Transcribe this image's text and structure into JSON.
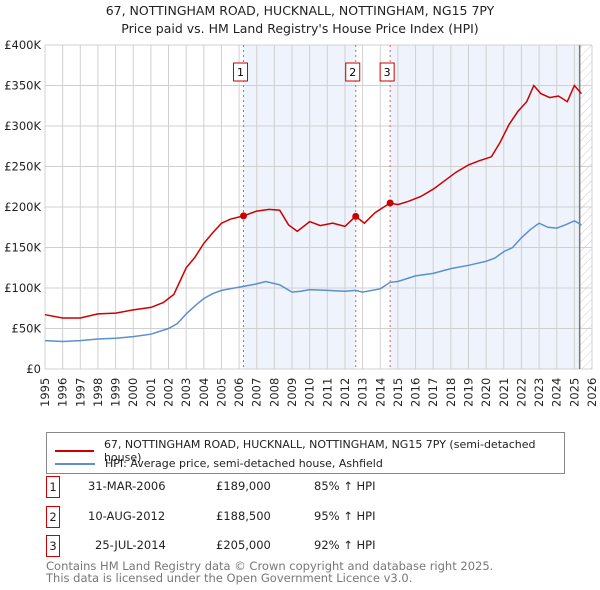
{
  "chart_data": {
    "type": "line",
    "title": "67, NOTTINGHAM ROAD, HUCKNALL, NOTTINGHAM, NG15 7PY",
    "subtitle": "Price paid vs. HM Land Registry's House Price Index (HPI)",
    "xlim": [
      1995,
      2026
    ],
    "ylim": [
      0,
      400000
    ],
    "x_ticks": [
      "1995",
      "1996",
      "1997",
      "1998",
      "1999",
      "2000",
      "2001",
      "2002",
      "2003",
      "2004",
      "2005",
      "2006",
      "2007",
      "2008",
      "2009",
      "2010",
      "2011",
      "2012",
      "2013",
      "2014",
      "2015",
      "2016",
      "2017",
      "2018",
      "2019",
      "2020",
      "2021",
      "2022",
      "2023",
      "2024",
      "2025",
      "2026"
    ],
    "y_ticks": [
      {
        "v": 0,
        "label": "£0"
      },
      {
        "v": 50000,
        "label": "£50K"
      },
      {
        "v": 100000,
        "label": "£100K"
      },
      {
        "v": 150000,
        "label": "£150K"
      },
      {
        "v": 200000,
        "label": "£200K"
      },
      {
        "v": 250000,
        "label": "£250K"
      },
      {
        "v": 300000,
        "label": "£300K"
      },
      {
        "v": 350000,
        "label": "£350K"
      },
      {
        "v": 400000,
        "label": "£400K"
      }
    ],
    "grid": true,
    "series": [
      {
        "name": "67, NOTTINGHAM ROAD, HUCKNALL, NOTTINGHAM, NG15 7PY (semi-detached house)",
        "color": "#cc0000",
        "x": [
          1995,
          1996,
          1997,
          1998,
          1999,
          2000,
          2001,
          2001.7,
          2002.3,
          2003,
          2003.5,
          2004,
          2004.5,
          2005,
          2005.5,
          2006.25,
          2007,
          2007.7,
          2008.3,
          2008.8,
          2009.3,
          2010,
          2010.6,
          2011.3,
          2012,
          2012.6,
          2013.1,
          2013.7,
          2014.56,
          2015,
          2015.6,
          2016.3,
          2017,
          2017.5,
          2018.3,
          2019,
          2019.6,
          2020.3,
          2020.8,
          2021.3,
          2021.8,
          2022.3,
          2022.7,
          2023.1,
          2023.6,
          2024.1,
          2024.6,
          2025,
          2025.4
        ],
        "values": [
          67000,
          63000,
          63000,
          68000,
          69000,
          73000,
          76000,
          82000,
          92000,
          125000,
          138000,
          155000,
          168000,
          180000,
          185000,
          189000,
          195000,
          197000,
          196000,
          178000,
          170000,
          182000,
          177000,
          180000,
          176000,
          188500,
          180000,
          193000,
          205000,
          203000,
          207000,
          213000,
          222000,
          230000,
          243000,
          252000,
          257000,
          262000,
          280000,
          302000,
          318000,
          330000,
          350000,
          340000,
          335000,
          337000,
          330000,
          350000,
          340000
        ]
      },
      {
        "name": "HPI: Average price, semi-detached house, Ashfield",
        "color": "#5b8fd0",
        "x": [
          1995,
          1996,
          1997,
          1998,
          1999,
          2000,
          2001,
          2002,
          2002.5,
          2003,
          2003.5,
          2004,
          2004.5,
          2005,
          2005.5,
          2006.25,
          2007,
          2007.5,
          2008.3,
          2009,
          2009.5,
          2010,
          2011,
          2012,
          2012.6,
          2013,
          2014,
          2014.56,
          2015,
          2016,
          2017,
          2018,
          2019,
          2020,
          2020.5,
          2021,
          2021.5,
          2022,
          2022.5,
          2023,
          2023.5,
          2024,
          2024.5,
          2025,
          2025.4
        ],
        "values": [
          35000,
          34000,
          35000,
          37000,
          38000,
          40000,
          43000,
          50000,
          56000,
          68000,
          78000,
          87000,
          93000,
          97000,
          99000,
          102000,
          105000,
          108000,
          104000,
          95000,
          96000,
          98000,
          97000,
          96000,
          97000,
          95000,
          99000,
          107000,
          108000,
          115000,
          118000,
          124000,
          128000,
          133000,
          137000,
          145000,
          150000,
          162000,
          172000,
          180000,
          175000,
          174000,
          178000,
          183000,
          178000
        ]
      }
    ],
    "sales": [
      {
        "n": "1",
        "x": 2006.25,
        "value": 189000,
        "date": "31-MAR-2006",
        "price": "£189,000",
        "hpi": "85% ↑ HPI"
      },
      {
        "n": "2",
        "x": 2012.61,
        "value": 188500,
        "date": "10-AUG-2012",
        "price": "£188,500",
        "hpi": "95% ↑ HPI"
      },
      {
        "n": "3",
        "x": 2014.56,
        "value": 205000,
        "date": "25-JUL-2014",
        "price": "£205,000",
        "hpi": "92% ↑ HPI"
      }
    ],
    "legend_position": "below"
  },
  "footer": {
    "line1": "Contains HM Land Registry data © Crown copyright and database right 2025.",
    "line2": "This data is licensed under the Open Government Licence v3.0."
  }
}
